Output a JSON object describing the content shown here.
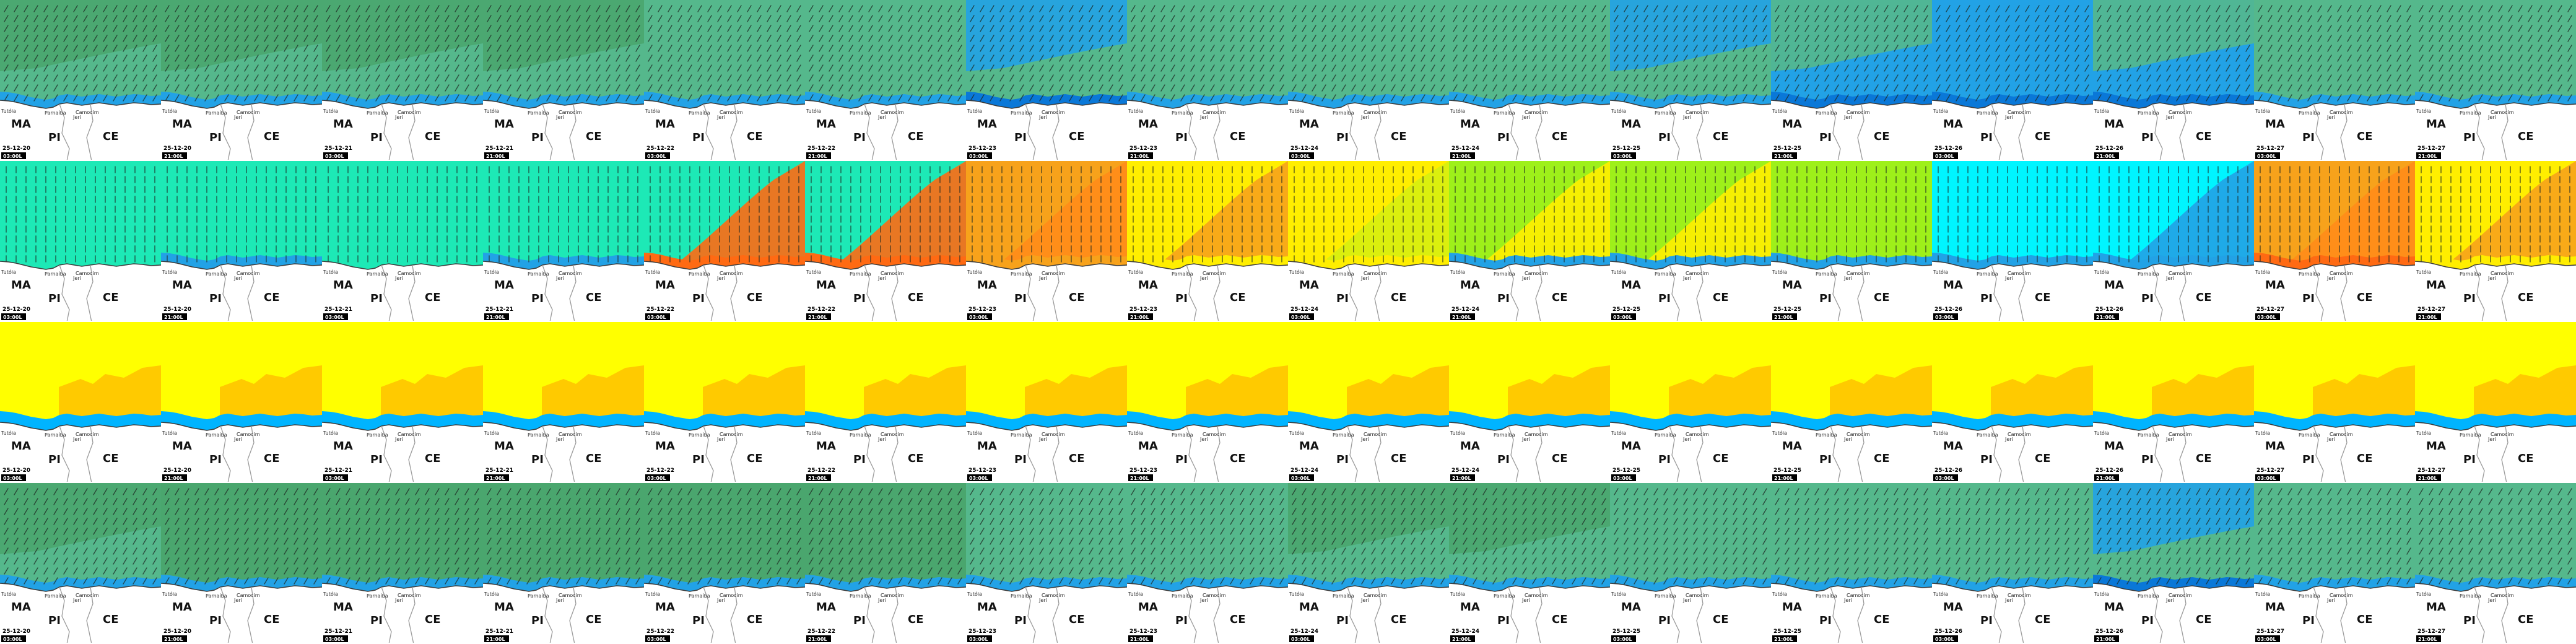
{
  "title": "",
  "rows": [
    {
      "variable": "wind",
      "palette": [
        "#55b88c",
        "#4aa66e",
        "#22a2e6",
        "#0a78d8",
        "#0c2a9a"
      ],
      "panels": [
        {
          "date": "25-12-20",
          "time": "03:00L",
          "base": "#55b88c",
          "patch": "#4aa66e",
          "coast": "#22a2e6"
        },
        {
          "date": "25-12-20",
          "time": "21:00L",
          "base": "#55b88c",
          "patch": "#4aa66e",
          "coast": "#22a2e6"
        },
        {
          "date": "25-12-21",
          "time": "03:00L",
          "base": "#55b88c",
          "patch": "#4aa66e",
          "coast": "#22a2e6"
        },
        {
          "date": "25-12-21",
          "time": "21:00L",
          "base": "#55b88c",
          "patch": "#4aa66e",
          "coast": "#22a2e6"
        },
        {
          "date": "25-12-22",
          "time": "03:00L",
          "base": "#55b88c",
          "patch": "",
          "coast": "#22a2e6"
        },
        {
          "date": "25-12-22",
          "time": "21:00L",
          "base": "#55b88c",
          "patch": "",
          "coast": "#22a2e6"
        },
        {
          "date": "25-12-23",
          "time": "03:00L",
          "base": "#55b88c",
          "patch": "#22a2e6",
          "coast": "#0a78d8"
        },
        {
          "date": "25-12-23",
          "time": "21:00L",
          "base": "#55b88c",
          "patch": "",
          "coast": "#22a2e6"
        },
        {
          "date": "25-12-24",
          "time": "03:00L",
          "base": "#55b88c",
          "patch": "",
          "coast": "#22a2e6"
        },
        {
          "date": "25-12-24",
          "time": "21:00L",
          "base": "#55b88c",
          "patch": "",
          "coast": "#22a2e6"
        },
        {
          "date": "25-12-25",
          "time": "03:00L",
          "base": "#55b88c",
          "patch": "#22a2e6",
          "coast": "#22a2e6"
        },
        {
          "date": "25-12-25",
          "time": "21:00L",
          "base": "#22a2e6",
          "patch": "#55b88c",
          "coast": "#0a78d8"
        },
        {
          "date": "25-12-26",
          "time": "03:00L",
          "base": "#22a2e6",
          "patch": "",
          "coast": "#0a78d8"
        },
        {
          "date": "25-12-26",
          "time": "21:00L",
          "base": "#22a2e6",
          "patch": "#55b88c",
          "coast": "#0a78d8"
        },
        {
          "date": "25-12-27",
          "time": "03:00L",
          "base": "#55b88c",
          "patch": "",
          "coast": "#22a2e6"
        },
        {
          "date": "25-12-27",
          "time": "21:00L",
          "base": "#55b88c",
          "patch": "",
          "coast": "#22a2e6"
        }
      ]
    },
    {
      "variable": "direction",
      "palette": [
        "#1de9b6",
        "#ff6a13",
        "#f7a21b",
        "#ffee00",
        "#9ef01a",
        "#00f5ff"
      ],
      "panels": [
        {
          "date": "25-12-20",
          "time": "03:00L",
          "base": "#1de9b6",
          "patch": "",
          "coast": "#1de9b6"
        },
        {
          "date": "25-12-20",
          "time": "21:00L",
          "base": "#1de9b6",
          "patch": "",
          "coast": "#22a2e6"
        },
        {
          "date": "25-12-21",
          "time": "03:00L",
          "base": "#1de9b6",
          "patch": "",
          "coast": "#1de9b6"
        },
        {
          "date": "25-12-21",
          "time": "21:00L",
          "base": "#1de9b6",
          "patch": "",
          "coast": "#22a2e6"
        },
        {
          "date": "25-12-22",
          "time": "03:00L",
          "base": "#1de9b6",
          "patch": "#ff6a13",
          "coast": "#ff6a13"
        },
        {
          "date": "25-12-22",
          "time": "21:00L",
          "base": "#1de9b6",
          "patch": "#ff6a13",
          "coast": "#ff6a13"
        },
        {
          "date": "25-12-23",
          "time": "03:00L",
          "base": "#f7a21b",
          "patch": "#ff8c1a",
          "coast": "#f7a21b"
        },
        {
          "date": "25-12-23",
          "time": "21:00L",
          "base": "#ffee00",
          "patch": "#f7a21b",
          "coast": "#ffee00"
        },
        {
          "date": "25-12-24",
          "time": "03:00L",
          "base": "#ffee00",
          "patch": "#d7ee10",
          "coast": "#ffee00"
        },
        {
          "date": "25-12-24",
          "time": "21:00L",
          "base": "#9ef01a",
          "patch": "#ffee00",
          "coast": "#22a2e6"
        },
        {
          "date": "25-12-25",
          "time": "03:00L",
          "base": "#9ef01a",
          "patch": "#ffee00",
          "coast": "#22a2e6"
        },
        {
          "date": "25-12-25",
          "time": "21:00L",
          "base": "#9ef01a",
          "patch": "",
          "coast": "#22a2e6"
        },
        {
          "date": "25-12-26",
          "time": "03:00L",
          "base": "#00f5ff",
          "patch": "",
          "coast": "#22a2e6"
        },
        {
          "date": "25-12-26",
          "time": "21:00L",
          "base": "#00f5ff",
          "patch": "#22a2e6",
          "coast": "#22a2e6"
        },
        {
          "date": "25-12-27",
          "time": "03:00L",
          "base": "#f7a21b",
          "patch": "#ff8c1a",
          "coast": "#ff6a13"
        },
        {
          "date": "25-12-27",
          "time": "21:00L",
          "base": "#ffee00",
          "patch": "#f7a21b",
          "coast": "#ffee00"
        }
      ]
    },
    {
      "variable": "field3",
      "palette": [
        "#ffff00",
        "#ffc400",
        "#00b4ff"
      ],
      "panels": [
        {
          "date": "25-12-20",
          "time": "03:00L",
          "base": "#ffff00",
          "patch": "#ffc400",
          "coast": "#00b4ff"
        },
        {
          "date": "25-12-20",
          "time": "21:00L",
          "base": "#ffff00",
          "patch": "#ffc400",
          "coast": "#00b4ff"
        },
        {
          "date": "25-12-21",
          "time": "03:00L",
          "base": "#ffff00",
          "patch": "#ffc400",
          "coast": "#00b4ff"
        },
        {
          "date": "25-12-21",
          "time": "21:00L",
          "base": "#ffff00",
          "patch": "#ffc400",
          "coast": "#00b4ff"
        },
        {
          "date": "25-12-22",
          "time": "03:00L",
          "base": "#ffff00",
          "patch": "#ffc400",
          "coast": "#00b4ff"
        },
        {
          "date": "25-12-22",
          "time": "21:00L",
          "base": "#ffff00",
          "patch": "#ffc400",
          "coast": "#00b4ff"
        },
        {
          "date": "25-12-23",
          "time": "03:00L",
          "base": "#ffff00",
          "patch": "#ffc400",
          "coast": "#00b4ff"
        },
        {
          "date": "25-12-23",
          "time": "21:00L",
          "base": "#ffff00",
          "patch": "#ffc400",
          "coast": "#00b4ff"
        },
        {
          "date": "25-12-24",
          "time": "03:00L",
          "base": "#ffff00",
          "patch": "#ffc400",
          "coast": "#00b4ff"
        },
        {
          "date": "25-12-24",
          "time": "21:00L",
          "base": "#ffff00",
          "patch": "#ffc400",
          "coast": "#00b4ff"
        },
        {
          "date": "25-12-25",
          "time": "03:00L",
          "base": "#ffff00",
          "patch": "#ffc400",
          "coast": "#00b4ff"
        },
        {
          "date": "25-12-25",
          "time": "21:00L",
          "base": "#ffff00",
          "patch": "#ffc400",
          "coast": "#00b4ff"
        },
        {
          "date": "25-12-26",
          "time": "03:00L",
          "base": "#ffff00",
          "patch": "#ffc400",
          "coast": "#00b4ff"
        },
        {
          "date": "25-12-26",
          "time": "21:00L",
          "base": "#ffff00",
          "patch": "#ffc400",
          "coast": "#00b4ff"
        },
        {
          "date": "25-12-27",
          "time": "03:00L",
          "base": "#ffff00",
          "patch": "#ffc400",
          "coast": "#00b4ff"
        },
        {
          "date": "25-12-27",
          "time": "21:00L",
          "base": "#ffff00",
          "patch": "#ffc400",
          "coast": "#00b4ff"
        }
      ]
    },
    {
      "variable": "gust",
      "palette": [
        "#55b88c",
        "#4aa66e",
        "#22a2e6",
        "#0a78d8"
      ],
      "panels": [
        {
          "date": "25-12-20",
          "time": "03:00L",
          "base": "#55b88c",
          "patch": "#4aa66e",
          "coast": "#22a2e6"
        },
        {
          "date": "25-12-20",
          "time": "21:00L",
          "base": "#4aa66e",
          "patch": "",
          "coast": "#22a2e6"
        },
        {
          "date": "25-12-21",
          "time": "03:00L",
          "base": "#4aa66e",
          "patch": "",
          "coast": "#22a2e6"
        },
        {
          "date": "25-12-21",
          "time": "21:00L",
          "base": "#4aa66e",
          "patch": "",
          "coast": "#22a2e6"
        },
        {
          "date": "25-12-22",
          "time": "03:00L",
          "base": "#4aa66e",
          "patch": "",
          "coast": "#22a2e6"
        },
        {
          "date": "25-12-22",
          "time": "21:00L",
          "base": "#4aa66e",
          "patch": "",
          "coast": "#22a2e6"
        },
        {
          "date": "25-12-23",
          "time": "03:00L",
          "base": "#55b88c",
          "patch": "",
          "coast": "#22a2e6"
        },
        {
          "date": "25-12-23",
          "time": "21:00L",
          "base": "#55b88c",
          "patch": "",
          "coast": "#22a2e6"
        },
        {
          "date": "25-12-24",
          "time": "03:00L",
          "base": "#55b88c",
          "patch": "#4aa66e",
          "coast": "#22a2e6"
        },
        {
          "date": "25-12-24",
          "time": "21:00L",
          "base": "#55b88c",
          "patch": "#4aa66e",
          "coast": "#22a2e6"
        },
        {
          "date": "25-12-25",
          "time": "03:00L",
          "base": "#55b88c",
          "patch": "",
          "coast": "#22a2e6"
        },
        {
          "date": "25-12-25",
          "time": "21:00L",
          "base": "#55b88c",
          "patch": "",
          "coast": "#22a2e6"
        },
        {
          "date": "25-12-26",
          "time": "03:00L",
          "base": "#55b88c",
          "patch": "",
          "coast": "#22a2e6"
        },
        {
          "date": "25-12-26",
          "time": "21:00L",
          "base": "#55b88c",
          "patch": "#22a2e6",
          "coast": "#0a78d8"
        },
        {
          "date": "25-12-27",
          "time": "03:00L",
          "base": "#55b88c",
          "patch": "",
          "coast": "#22a2e6"
        },
        {
          "date": "25-12-27",
          "time": "21:00L",
          "base": "#55b88c",
          "patch": "",
          "coast": "#22a2e6"
        }
      ]
    }
  ],
  "map_labels": {
    "states": [
      "MA",
      "PI",
      "CE"
    ],
    "cities": [
      "Tutóia",
      "Parnaíba",
      "Camocim",
      "Jeri"
    ]
  },
  "colors": {
    "land": "#ffffff",
    "border": "#9a9a9a",
    "coastline": "#3a3a3a",
    "timestamp_bg": "#000000",
    "timestamp_text": "#ffffff",
    "arrow": "#1e2a24"
  }
}
